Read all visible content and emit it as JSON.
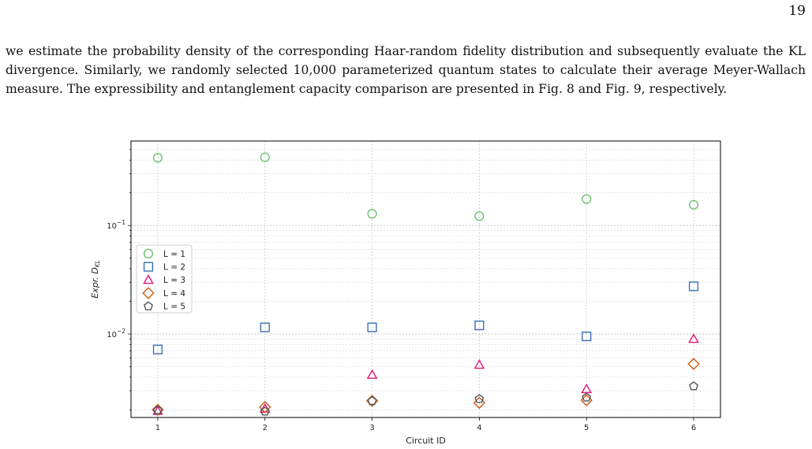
{
  "page": {
    "number": "19",
    "paragraph": "we estimate the probability density of the corresponding Haar-random fidelity distribution and subsequently evaluate the KL divergence. Similarly, we randomly selected 10,000 parameterized quantum states to calculate their average Meyer-Wallach measure. The expressibility and entanglement capacity comparison are presented in Fig. 8 and Fig. 9, respectively."
  },
  "chart_data": {
    "type": "scatter",
    "title": "",
    "xlabel": "Circuit ID",
    "ylabel_main": "Expr. D",
    "ylabel_sub": "KL",
    "x": [
      1,
      2,
      3,
      4,
      5,
      6
    ],
    "xticks": [
      "1",
      "2",
      "3",
      "4",
      "5",
      "6"
    ],
    "xlim": [
      0.75,
      6.25
    ],
    "yscale": "log",
    "ylim": [
      0.0017,
      0.6
    ],
    "ytick_labels": [
      {
        "value": 0.1,
        "base": "10",
        "exp": "−1"
      },
      {
        "value": 0.01,
        "base": "10",
        "exp": "−2"
      }
    ],
    "grid": true,
    "legend_position": "center-left",
    "series": [
      {
        "name": "L = 1",
        "marker": "circle",
        "color": "#6cc16e",
        "values": [
          0.42,
          0.425,
          0.128,
          0.122,
          0.175,
          0.155
        ]
      },
      {
        "name": "L = 2",
        "marker": "square",
        "color": "#3a6fb5",
        "values": [
          0.0072,
          0.0115,
          0.0115,
          0.012,
          0.0095,
          0.0275
        ]
      },
      {
        "name": "L = 3",
        "marker": "triangle",
        "color": "#e0197d",
        "values": [
          0.00195,
          0.00205,
          0.0042,
          0.0052,
          0.0031,
          0.009
        ]
      },
      {
        "name": "L = 4",
        "marker": "diamond",
        "color": "#cc5a14",
        "values": [
          0.002,
          0.00212,
          0.00242,
          0.00232,
          0.00245,
          0.0053
        ]
      },
      {
        "name": "L = 5",
        "marker": "pentagon",
        "color": "#555555",
        "values": [
          0.00198,
          0.00193,
          0.00241,
          0.00252,
          0.0026,
          0.0033
        ]
      }
    ]
  }
}
